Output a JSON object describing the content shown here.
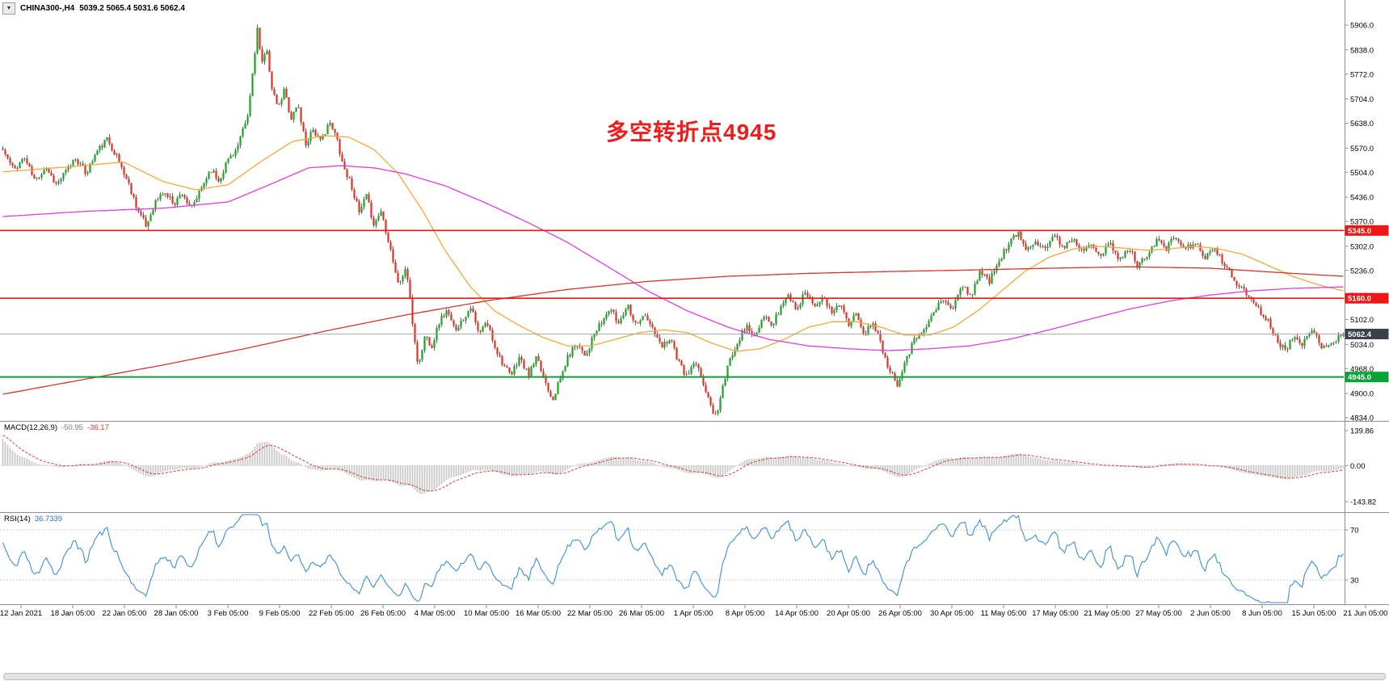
{
  "window": {
    "dropdown_glyph": "▼",
    "symbol": "CHINA300-,H4",
    "ohlc": "5039.2 5065.4 5031.6 5062.4"
  },
  "annotation": {
    "text": "多空转折点4945",
    "color": "#ee1c1c"
  },
  "indicators": {
    "macd": {
      "label": "MACD(12,26,9)",
      "value1": "-50.95",
      "value2": "-36.17",
      "value1_color": "#7a7a7a",
      "value2_color": "#cd3b2f"
    },
    "rsi": {
      "label": "RSI(14)",
      "value": "36.7339",
      "value_color": "#2f6fba"
    }
  },
  "chart_data": {
    "type": "candlestick",
    "title": "CHINA300-,H4",
    "symbol": "CHINA300-",
    "timeframe": "H4",
    "last_ohlc": {
      "open": 5039.2,
      "high": 5065.4,
      "low": 5031.6,
      "close": 5062.4
    },
    "ylim": [
      4834,
      5906
    ],
    "y_tick_labels": [
      "5906.0",
      "5838.0",
      "5772.0",
      "5704.0",
      "5638.0",
      "5570.0",
      "5504.0",
      "5436.0",
      "5370.0",
      "5302.0",
      "5236.0",
      "5168.0",
      "5102.0",
      "5034.0",
      "4968.0",
      "4900.0",
      "4834.0"
    ],
    "x_tick_labels": [
      "12 Jan 2021",
      "18 Jan 05:00",
      "22 Jan 05:00",
      "28 Jan 05:00",
      "3 Feb 05:00",
      "9 Feb 05:00",
      "22 Feb 05:00",
      "26 Feb 05:00",
      "4 Mar 05:00",
      "10 Mar 05:00",
      "16 Mar 05:00",
      "22 Mar 05:00",
      "26 Mar 05:00",
      "1 Apr 05:00",
      "8 Apr 05:00",
      "14 Apr 05:00",
      "20 Apr 05:00",
      "26 Apr 05:00",
      "30 Apr 05:00",
      "11 May 05:00",
      "17 May 05:00",
      "21 May 05:00",
      "27 May 05:00",
      "2 Jun 05:00",
      "8 Jun 05:00",
      "15 Jun 05:00",
      "21 Jun 05:00"
    ],
    "price_path": [
      [
        0,
        5565
      ],
      [
        0.008,
        5510
      ],
      [
        0.016,
        5545
      ],
      [
        0.024,
        5480
      ],
      [
        0.032,
        5520
      ],
      [
        0.04,
        5470
      ],
      [
        0.048,
        5510
      ],
      [
        0.054,
        5545
      ],
      [
        0.062,
        5500
      ],
      [
        0.07,
        5560
      ],
      [
        0.078,
        5595
      ],
      [
        0.086,
        5540
      ],
      [
        0.094,
        5470
      ],
      [
        0.101,
        5400
      ],
      [
        0.107,
        5355
      ],
      [
        0.113,
        5420
      ],
      [
        0.12,
        5450
      ],
      [
        0.128,
        5420
      ],
      [
        0.134,
        5450
      ],
      [
        0.14,
        5400
      ],
      [
        0.147,
        5450
      ],
      [
        0.155,
        5515
      ],
      [
        0.161,
        5480
      ],
      [
        0.168,
        5540
      ],
      [
        0.175,
        5570
      ],
      [
        0.183,
        5660
      ],
      [
        0.187,
        5800
      ],
      [
        0.19,
        5900
      ],
      [
        0.193,
        5790
      ],
      [
        0.197,
        5845
      ],
      [
        0.201,
        5720
      ],
      [
        0.206,
        5680
      ],
      [
        0.21,
        5730
      ],
      [
        0.215,
        5650
      ],
      [
        0.22,
        5690
      ],
      [
        0.226,
        5580
      ],
      [
        0.231,
        5625
      ],
      [
        0.237,
        5585
      ],
      [
        0.243,
        5640
      ],
      [
        0.249,
        5600
      ],
      [
        0.254,
        5520
      ],
      [
        0.26,
        5470
      ],
      [
        0.266,
        5390
      ],
      [
        0.271,
        5440
      ],
      [
        0.277,
        5360
      ],
      [
        0.282,
        5400
      ],
      [
        0.289,
        5300
      ],
      [
        0.295,
        5195
      ],
      [
        0.301,
        5245
      ],
      [
        0.306,
        5080
      ],
      [
        0.31,
        4970
      ],
      [
        0.315,
        5060
      ],
      [
        0.32,
        5030
      ],
      [
        0.326,
        5100
      ],
      [
        0.331,
        5125
      ],
      [
        0.337,
        5075
      ],
      [
        0.343,
        5100
      ],
      [
        0.349,
        5140
      ],
      [
        0.355,
        5060
      ],
      [
        0.361,
        5095
      ],
      [
        0.368,
        5020
      ],
      [
        0.374,
        4975
      ],
      [
        0.379,
        4945
      ],
      [
        0.385,
        5000
      ],
      [
        0.392,
        4950
      ],
      [
        0.398,
        4995
      ],
      [
        0.404,
        4940
      ],
      [
        0.41,
        4885
      ],
      [
        0.415,
        4930
      ],
      [
        0.421,
        4995
      ],
      [
        0.428,
        5040
      ],
      [
        0.435,
        5005
      ],
      [
        0.441,
        5060
      ],
      [
        0.448,
        5100
      ],
      [
        0.453,
        5135
      ],
      [
        0.459,
        5090
      ],
      [
        0.466,
        5145
      ],
      [
        0.472,
        5090
      ],
      [
        0.478,
        5115
      ],
      [
        0.485,
        5075
      ],
      [
        0.491,
        5025
      ],
      [
        0.498,
        5055
      ],
      [
        0.504,
        4985
      ],
      [
        0.51,
        4945
      ],
      [
        0.516,
        4985
      ],
      [
        0.522,
        4935
      ],
      [
        0.528,
        4865
      ],
      [
        0.532,
        4838
      ],
      [
        0.537,
        4915
      ],
      [
        0.543,
        5000
      ],
      [
        0.549,
        5050
      ],
      [
        0.555,
        5085
      ],
      [
        0.561,
        5050
      ],
      [
        0.568,
        5110
      ],
      [
        0.574,
        5085
      ],
      [
        0.58,
        5135
      ],
      [
        0.586,
        5170
      ],
      [
        0.592,
        5130
      ],
      [
        0.599,
        5180
      ],
      [
        0.605,
        5140
      ],
      [
        0.611,
        5165
      ],
      [
        0.618,
        5120
      ],
      [
        0.625,
        5150
      ],
      [
        0.631,
        5080
      ],
      [
        0.637,
        5120
      ],
      [
        0.643,
        5060
      ],
      [
        0.649,
        5100
      ],
      [
        0.655,
        5035
      ],
      [
        0.661,
        4970
      ],
      [
        0.667,
        4925
      ],
      [
        0.673,
        4990
      ],
      [
        0.68,
        5045
      ],
      [
        0.687,
        5080
      ],
      [
        0.694,
        5115
      ],
      [
        0.701,
        5160
      ],
      [
        0.708,
        5125
      ],
      [
        0.715,
        5195
      ],
      [
        0.722,
        5165
      ],
      [
        0.729,
        5235
      ],
      [
        0.736,
        5205
      ],
      [
        0.743,
        5265
      ],
      [
        0.75,
        5305
      ],
      [
        0.757,
        5340
      ],
      [
        0.763,
        5295
      ],
      [
        0.77,
        5320
      ],
      [
        0.777,
        5295
      ],
      [
        0.784,
        5330
      ],
      [
        0.791,
        5300
      ],
      [
        0.798,
        5325
      ],
      [
        0.805,
        5290
      ],
      [
        0.812,
        5315
      ],
      [
        0.819,
        5275
      ],
      [
        0.826,
        5310
      ],
      [
        0.833,
        5260
      ],
      [
        0.84,
        5300
      ],
      [
        0.847,
        5245
      ],
      [
        0.854,
        5285
      ],
      [
        0.861,
        5320
      ],
      [
        0.868,
        5295
      ],
      [
        0.875,
        5330
      ],
      [
        0.882,
        5290
      ],
      [
        0.889,
        5315
      ],
      [
        0.896,
        5270
      ],
      [
        0.903,
        5295
      ],
      [
        0.91,
        5260
      ],
      [
        0.917,
        5220
      ],
      [
        0.924,
        5185
      ],
      [
        0.931,
        5160
      ],
      [
        0.938,
        5125
      ],
      [
        0.945,
        5090
      ],
      [
        0.951,
        5045
      ],
      [
        0.957,
        5015
      ],
      [
        0.963,
        5065
      ],
      [
        0.97,
        5035
      ],
      [
        0.977,
        5072
      ],
      [
        0.984,
        5030
      ],
      [
        0.991,
        5039
      ],
      [
        1,
        5062.4
      ]
    ],
    "candles": {
      "count": 554,
      "seed": 11,
      "noise": 9,
      "wick": 9,
      "last_close": 5062.4
    },
    "moving_averages": [
      {
        "name": "ma-fast-orange",
        "color": "#f2a93b",
        "width": 1.3,
        "path": [
          [
            0,
            5505
          ],
          [
            0.06,
            5522
          ],
          [
            0.09,
            5532
          ],
          [
            0.12,
            5478
          ],
          [
            0.144,
            5456
          ],
          [
            0.168,
            5470
          ],
          [
            0.192,
            5532
          ],
          [
            0.216,
            5588
          ],
          [
            0.24,
            5604
          ],
          [
            0.258,
            5600
          ],
          [
            0.277,
            5566
          ],
          [
            0.295,
            5500
          ],
          [
            0.313,
            5400
          ],
          [
            0.33,
            5290
          ],
          [
            0.349,
            5190
          ],
          [
            0.367,
            5125
          ],
          [
            0.385,
            5086
          ],
          [
            0.403,
            5053
          ],
          [
            0.421,
            5030
          ],
          [
            0.439,
            5030
          ],
          [
            0.457,
            5048
          ],
          [
            0.475,
            5066
          ],
          [
            0.493,
            5074
          ],
          [
            0.511,
            5066
          ],
          [
            0.529,
            5037
          ],
          [
            0.547,
            5015
          ],
          [
            0.565,
            5022
          ],
          [
            0.583,
            5048
          ],
          [
            0.601,
            5081
          ],
          [
            0.619,
            5096
          ],
          [
            0.637,
            5096
          ],
          [
            0.655,
            5081
          ],
          [
            0.673,
            5059
          ],
          [
            0.691,
            5059
          ],
          [
            0.709,
            5081
          ],
          [
            0.727,
            5125
          ],
          [
            0.745,
            5180
          ],
          [
            0.763,
            5235
          ],
          [
            0.781,
            5273
          ],
          [
            0.799,
            5295
          ],
          [
            0.817,
            5302
          ],
          [
            0.835,
            5297
          ],
          [
            0.853,
            5291
          ],
          [
            0.871,
            5295
          ],
          [
            0.889,
            5302
          ],
          [
            0.907,
            5295
          ],
          [
            0.925,
            5280
          ],
          [
            0.943,
            5251
          ],
          [
            0.962,
            5220
          ],
          [
            0.98,
            5198
          ],
          [
            1,
            5180
          ]
        ]
      },
      {
        "name": "ma-medium-magenta",
        "color": "#e13ce1",
        "width": 1.3,
        "path": [
          [
            0,
            5383
          ],
          [
            0.06,
            5397
          ],
          [
            0.12,
            5406
          ],
          [
            0.168,
            5423
          ],
          [
            0.204,
            5478
          ],
          [
            0.228,
            5516
          ],
          [
            0.252,
            5522
          ],
          [
            0.277,
            5516
          ],
          [
            0.3,
            5500
          ],
          [
            0.33,
            5467
          ],
          [
            0.361,
            5419
          ],
          [
            0.391,
            5368
          ],
          [
            0.421,
            5313
          ],
          [
            0.451,
            5247
          ],
          [
            0.481,
            5180
          ],
          [
            0.511,
            5125
          ],
          [
            0.541,
            5081
          ],
          [
            0.571,
            5048
          ],
          [
            0.601,
            5030
          ],
          [
            0.631,
            5022
          ],
          [
            0.661,
            5017
          ],
          [
            0.691,
            5022
          ],
          [
            0.721,
            5030
          ],
          [
            0.751,
            5048
          ],
          [
            0.781,
            5074
          ],
          [
            0.811,
            5103
          ],
          [
            0.841,
            5131
          ],
          [
            0.871,
            5153
          ],
          [
            0.901,
            5169
          ],
          [
            0.931,
            5180
          ],
          [
            0.962,
            5187
          ],
          [
            1,
            5191
          ]
        ]
      },
      {
        "name": "ma-slow-red",
        "color": "#d5352c",
        "width": 1.3,
        "path": [
          [
            0,
            4898
          ],
          [
            0.06,
            4938
          ],
          [
            0.12,
            4978
          ],
          [
            0.18,
            5022
          ],
          [
            0.24,
            5070
          ],
          [
            0.3,
            5114
          ],
          [
            0.361,
            5153
          ],
          [
            0.421,
            5184
          ],
          [
            0.481,
            5206
          ],
          [
            0.541,
            5220
          ],
          [
            0.601,
            5228
          ],
          [
            0.661,
            5233
          ],
          [
            0.721,
            5237
          ],
          [
            0.781,
            5242
          ],
          [
            0.841,
            5246
          ],
          [
            0.901,
            5242
          ],
          [
            0.962,
            5228
          ],
          [
            1,
            5220
          ]
        ]
      }
    ],
    "levels": [
      {
        "label": "5345.0",
        "value": 5345.0,
        "color": "#f01616",
        "width": 1.6
      },
      {
        "label": "5160.0",
        "value": 5160.0,
        "color": "#f01616",
        "width": 1.6
      },
      {
        "label": "4945.0",
        "value": 4945.0,
        "color": "#0aa136",
        "width": 2
      }
    ],
    "current_price": {
      "label": "5062.4",
      "value": 5062.4,
      "line_color": "#a0a0a0",
      "tag_color": "#3b4149"
    },
    "macd_panel": {
      "label": "MACD(12,26,9)",
      "values": [
        -50.95,
        -36.17
      ],
      "tick_labels": [
        "139.86",
        "0.00",
        "-143.82"
      ],
      "fast": 12,
      "slow": 26,
      "signal": 9,
      "seed_fast": 55,
      "seed_slow": -65,
      "seed_signal": 125
    },
    "rsi_panel": {
      "label": "RSI(14)",
      "value": 36.7339,
      "period": 14,
      "levels": [
        70,
        30
      ],
      "tick_labels": [
        "70",
        "30"
      ],
      "seed_gain": 6,
      "seed_loss": 4
    },
    "colors": {
      "up": "#1ba426",
      "down": "#e03327",
      "wick": "#222222",
      "macd_hist": "#c6c6c6",
      "macd_signal": "#d93a2f",
      "rsi_line": "#3f8ed5",
      "grid": "#bdbdbd",
      "separator": "#8f8f8f",
      "axis_text": "#000000"
    }
  }
}
